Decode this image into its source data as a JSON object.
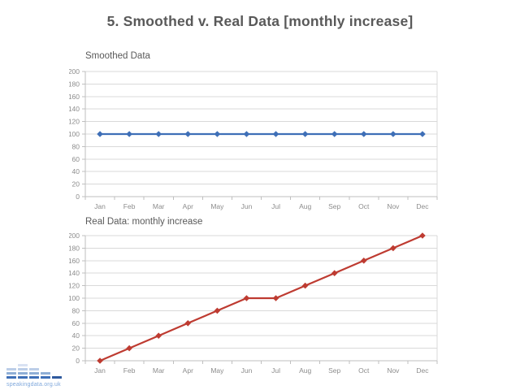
{
  "slide": {
    "title": "5. Smoothed v. Real Data [monthly increase]"
  },
  "chart_data": [
    {
      "type": "line",
      "title": "Smoothed Data",
      "categories": [
        "Jan",
        "Feb",
        "Mar",
        "Apr",
        "May",
        "Jun",
        "Jul",
        "Aug",
        "Sep",
        "Oct",
        "Nov",
        "Dec"
      ],
      "series": [
        {
          "name": "Smoothed Data",
          "color": "#3E6FB7",
          "values": [
            100,
            100,
            100,
            100,
            100,
            100,
            100,
            100,
            100,
            100,
            100,
            100
          ]
        }
      ],
      "xlabel": "",
      "ylabel": "",
      "ylim": [
        0,
        200
      ],
      "ytick": 20,
      "grid": true,
      "legend": "none",
      "marker": "diamond"
    },
    {
      "type": "line",
      "title": "Real Data: monthly increase",
      "categories": [
        "Jan",
        "Feb",
        "Mar",
        "Apr",
        "May",
        "Jun",
        "Jul",
        "Aug",
        "Sep",
        "Oct",
        "Nov",
        "Dec"
      ],
      "series": [
        {
          "name": "Real Data: monthly increase",
          "color": "#BE3B31",
          "values": [
            0,
            20,
            40,
            60,
            80,
            100,
            100,
            120,
            140,
            160,
            180,
            200
          ]
        }
      ],
      "xlabel": "",
      "ylabel": "",
      "ylim": [
        0,
        200
      ],
      "ytick": 20,
      "grid": true,
      "legend": "none",
      "marker": "diamond"
    }
  ],
  "footer": {
    "logo_text": "speakingdata.org.uk",
    "logo_bars": [
      3,
      4,
      3,
      2,
      1
    ]
  },
  "theme": {
    "title_color": "#595959",
    "axis_label_color": "#8C8C8C",
    "gridline_color": "#D9D9D9",
    "axis_line_color": "#BFBFBF",
    "logo_bar_colors": [
      "#D9E2F3",
      "#BCCEE8",
      "#8FAFD6",
      "#3E6FB7"
    ],
    "logo_last_bar_color": "#2F5A9E",
    "logo_text_color": "#7FA8DC"
  }
}
